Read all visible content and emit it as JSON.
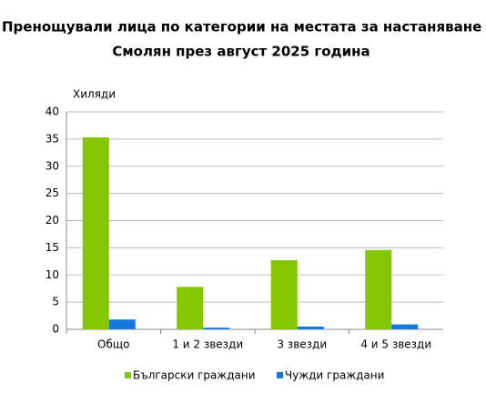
{
  "chart_data": {
    "type": "bar",
    "title": [
      "Пренощували лица по категории на местата за настаняване в о",
      "Смолян през август 2025 година"
    ],
    "y_axis_label": "Хиляди",
    "categories": [
      "Общо",
      "1 и 2 звезди",
      "3 звезди",
      "4 и 5 звезди"
    ],
    "series": [
      {
        "name": "Български граждани",
        "color": "#84c600",
        "values": [
          35.3,
          7.8,
          12.7,
          14.6
        ]
      },
      {
        "name": "Чужди граждани",
        "color": "#1478dc",
        "values": [
          1.8,
          0.3,
          0.5,
          0.9
        ]
      }
    ],
    "ylim": [
      0,
      40
    ],
    "yticks": [
      0,
      5,
      10,
      15,
      20,
      25,
      30,
      35,
      40
    ],
    "grid": true,
    "legend": "bottom"
  }
}
